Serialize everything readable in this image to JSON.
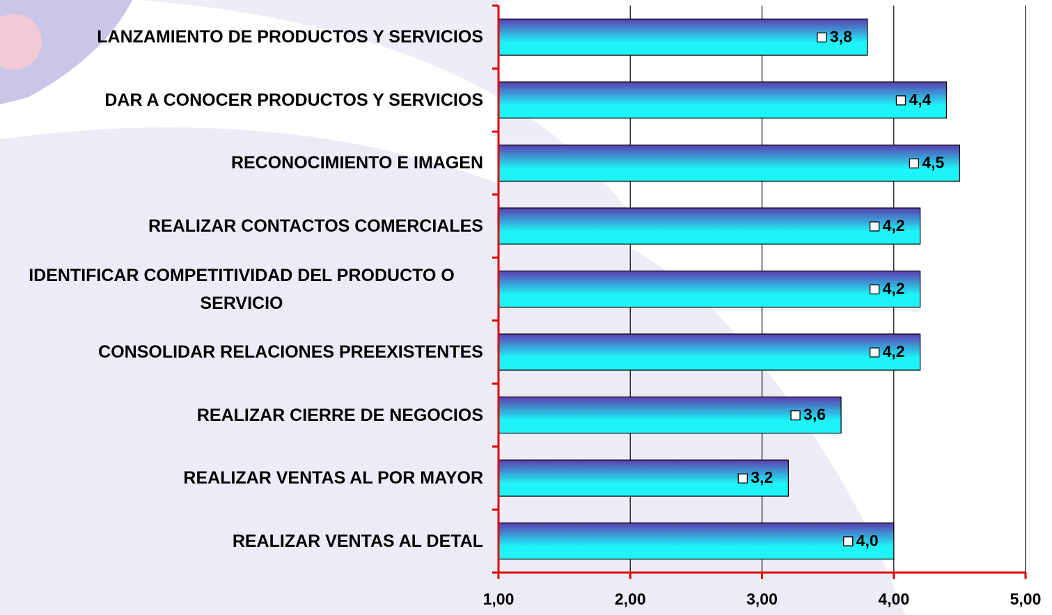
{
  "chart_data": {
    "type": "barh",
    "categories": [
      "LANZAMIENTO DE PRODUCTOS Y SERVICIOS",
      "DAR A CONOCER  PRODUCTOS Y SERVICIOS",
      "RECONOCIMIENTO E IMAGEN",
      "REALIZAR CONTACTOS COMERCIALES",
      "IDENTIFICAR COMPETITIVIDAD DEL PRODUCTO O SERVICIO",
      "CONSOLIDAR RELACIONES PREEXISTENTES",
      "REALIZAR CIERRE DE NEGOCIOS",
      "REALIZAR VENTAS AL POR MAYOR",
      "REALIZAR VENTAS AL DETAL"
    ],
    "values": [
      3.8,
      4.4,
      4.5,
      4.2,
      4.2,
      4.2,
      3.6,
      3.2,
      4.0
    ],
    "value_labels": [
      "3,8",
      "4,4",
      "4,5",
      "4,2",
      "4,2",
      "4,2",
      "3,6",
      "3,2",
      "4,0"
    ],
    "xlim": [
      1,
      5
    ],
    "xticks": [
      {
        "value": 1,
        "label": "1,00"
      },
      {
        "value": 2,
        "label": "2,00"
      },
      {
        "value": 3,
        "label": "3,00"
      },
      {
        "value": 4,
        "label": "4,00"
      },
      {
        "value": 5,
        "label": "5,00"
      }
    ],
    "grid": true,
    "color": [
      "#5b3db0",
      "#1ef4f8"
    ]
  }
}
